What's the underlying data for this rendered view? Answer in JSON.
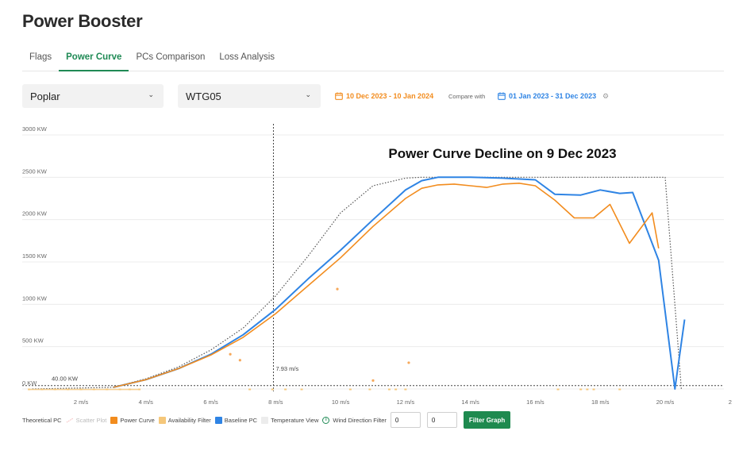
{
  "app": {
    "title": "Power Booster"
  },
  "tabs": [
    {
      "label": "Flags",
      "active": false
    },
    {
      "label": "Power Curve",
      "active": true
    },
    {
      "label": "PCs Comparison",
      "active": false
    },
    {
      "label": "Loss Analysis",
      "active": false
    }
  ],
  "filters": {
    "site": "Poplar",
    "turbine": "WTG05",
    "range_primary": "10 Dec 2023 - 10 Jan 2024",
    "compare_label": "Compare with",
    "range_compare": "01 Jan 2023 - 31 Dec 2023"
  },
  "colors": {
    "accent": "#1f8a55",
    "power_curve": "#f28c1e",
    "baseline": "#2f84e4",
    "availability": "#f5c77a",
    "theoretical": "#555555"
  },
  "legend": {
    "theoretical": "Theoretical PC",
    "scatter": "Scatter Plot",
    "power_curve": "Power Curve",
    "availability": "Availability Filter",
    "baseline": "Baseline PC",
    "temperature": "Temperature View",
    "wind_direction": "Wind Direction Filter",
    "wind_min": "0",
    "wind_max": "0",
    "filter_button": "Filter Graph"
  },
  "chart_data": {
    "type": "line",
    "title": "Power Curve Decline on 9 Dec 2023",
    "xlabel": "",
    "ylabel": "",
    "xlim": [
      0.3,
      22
    ],
    "ylim": [
      -30,
      3000
    ],
    "x_ticks": [
      2,
      4,
      6,
      8,
      10,
      12,
      14,
      16,
      18,
      20,
      22
    ],
    "x_tick_labels": [
      "2 m/s",
      "4 m/s",
      "6 m/s",
      "8 m/s",
      "10 m/s",
      "12 m/s",
      "14 m/s",
      "16 m/s",
      "18 m/s",
      "20 m/s",
      "2"
    ],
    "y_ticks": [
      0,
      500,
      1000,
      1500,
      2000,
      2500,
      3000
    ],
    "y_tick_labels": [
      "0 KW",
      "500 KW",
      "1000 KW",
      "1500 KW",
      "2000 KW",
      "2500 KW",
      "3000 KW"
    ],
    "grid": true,
    "threshold": {
      "value": 40,
      "label": "40.00 KW"
    },
    "marker": {
      "x": 7.93,
      "label": "7.93 m/s"
    },
    "series": [
      {
        "name": "Theoretical PC",
        "style": "dotted",
        "x": [
          0.5,
          3,
          4,
          5,
          6,
          7,
          8,
          9,
          10,
          11,
          12,
          12.5,
          13,
          20,
          20.5
        ],
        "y": [
          0,
          20,
          120,
          260,
          460,
          720,
          1100,
          1570,
          2080,
          2400,
          2490,
          2500,
          2500,
          2500,
          0
        ]
      },
      {
        "name": "Baseline PC",
        "x": [
          3,
          4,
          5,
          6,
          7,
          8,
          9,
          10,
          11,
          12,
          12.5,
          13,
          14,
          15,
          16,
          16.6,
          17.4,
          18,
          18.6,
          19,
          19.8,
          20.3,
          20.6
        ],
        "y": [
          20,
          110,
          240,
          410,
          640,
          940,
          1300,
          1640,
          2000,
          2350,
          2460,
          2500,
          2500,
          2490,
          2470,
          2300,
          2290,
          2350,
          2310,
          2320,
          1520,
          0,
          820
        ]
      },
      {
        "name": "Power Curve",
        "x": [
          3,
          4,
          5,
          6,
          7,
          8,
          9,
          10,
          11,
          12,
          12.5,
          13,
          13.5,
          14,
          14.5,
          15,
          15.5,
          16,
          16.6,
          17.2,
          17.8,
          18.3,
          18.9,
          19.6,
          19.8
        ],
        "y": [
          20,
          110,
          240,
          400,
          610,
          890,
          1220,
          1550,
          1920,
          2250,
          2370,
          2410,
          2420,
          2400,
          2380,
          2420,
          2430,
          2400,
          2230,
          2020,
          2020,
          2180,
          1720,
          2080,
          1660
        ]
      }
    ],
    "availability_x": [
      0.4,
      0.8,
      1.2,
      1.6,
      2.0,
      2.4,
      2.8,
      3.2,
      3.5,
      3.8,
      7.2,
      7.9,
      8.3,
      8.8,
      10.3,
      10.9,
      11.5,
      11.7,
      12.0,
      16.7,
      17.4,
      17.6,
      17.8,
      18.6
    ],
    "scatter_points": [
      {
        "x": 6.6,
        "y": 410
      },
      {
        "x": 6.9,
        "y": 340
      },
      {
        "x": 9.9,
        "y": 1180
      },
      {
        "x": 11.0,
        "y": 100
      },
      {
        "x": 12.1,
        "y": 310
      }
    ]
  }
}
